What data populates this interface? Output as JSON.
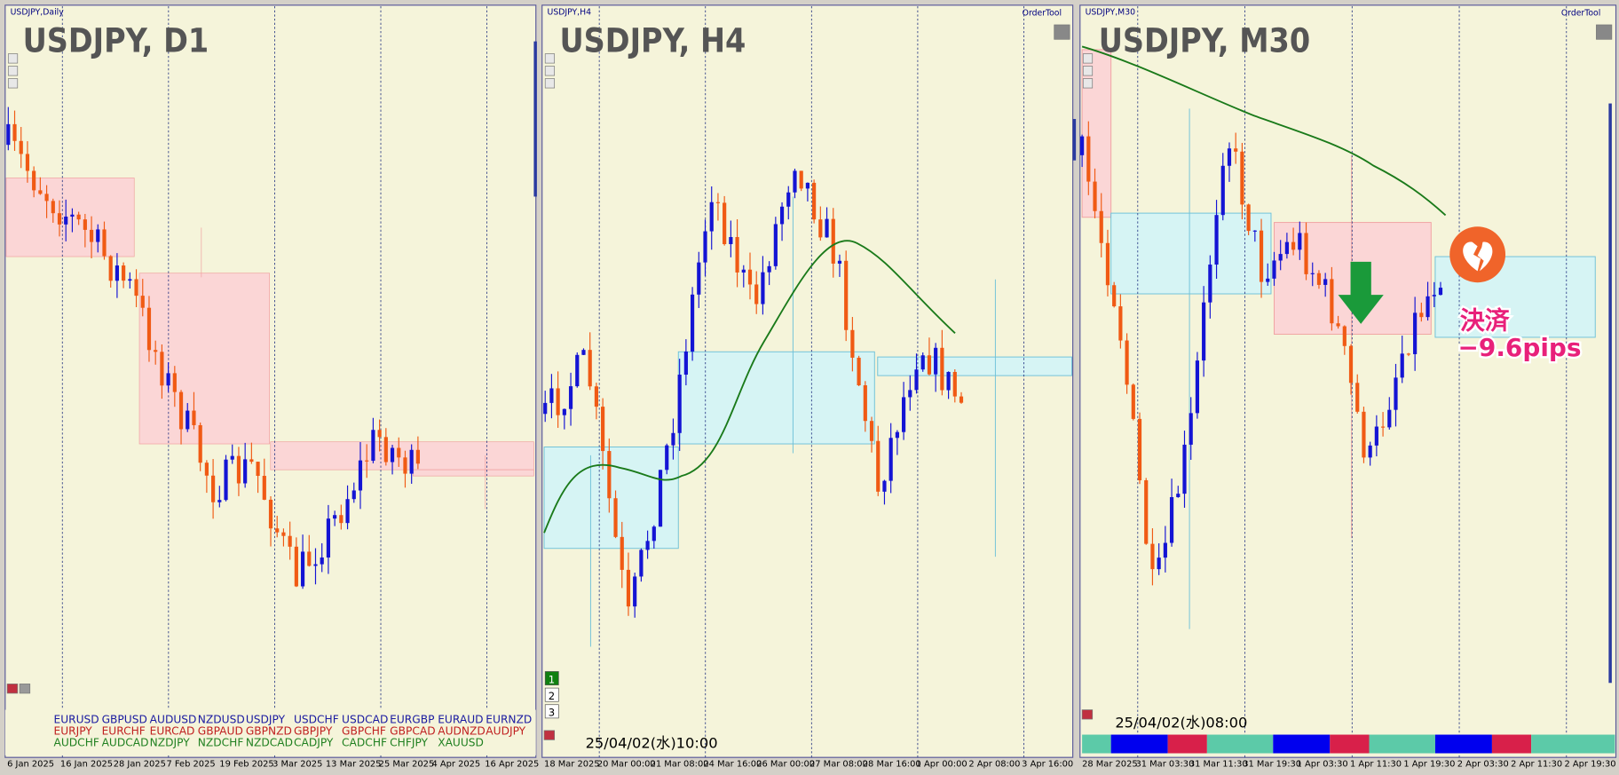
{
  "panels": [
    {
      "header": "USDJPY,Daily",
      "title": "USDJPY, D1",
      "time_labels": [
        "6 Jan 2025",
        "16 Jan 2025",
        "28 Jan 2025",
        "7 Feb 2025",
        "19 Feb 2025",
        "3 Mar 2025",
        "13 Mar 2025",
        "25 Mar 2025",
        "4 Apr 2025",
        "16 Apr 2025"
      ],
      "symbols": [
        [
          "EURUSD",
          "GBPUSD",
          "AUDUSD",
          "NZDUSD",
          "USDJPY",
          "USDCHF",
          "USDCAD",
          "EURGBP",
          "EURAUD",
          "EURNZD"
        ],
        [
          "EURJPY",
          "EURCHF",
          "EURCAD",
          "GBPAUD",
          "GBPNZD",
          "GBPJPY",
          "GBPCHF",
          "GBPCAD",
          "AUDNZD",
          "AUDJPY"
        ],
        [
          "AUDCHF",
          "AUDCAD",
          "NZDJPY",
          "NZDCHF",
          "NZDCAD",
          "CADJPY",
          "CADCHF",
          "CHFJPY",
          "XAUUSD"
        ]
      ]
    },
    {
      "header": "USDJPY,H4",
      "tool": "OrderTool",
      "title": "USDJPY, H4",
      "time_labels": [
        "18 Mar 2025",
        "20 Mar 00:00",
        "21 Mar 08:00",
        "24 Mar 16:00",
        "26 Mar 00:00",
        "27 Mar 08:00",
        "28 Mar 16:00",
        "1 Apr 00:00",
        "2 Apr 08:00",
        "3 Apr 16:00"
      ],
      "timestamp": "25/04/02(水)10:00",
      "buttons": [
        "1",
        "2",
        "3"
      ]
    },
    {
      "header": "USDJPY,M30",
      "tool": "OrderTool",
      "title": "USDJPY, M30",
      "time_labels": [
        "28 Mar 2025",
        "31 Mar 03:30",
        "31 Mar 11:30",
        "31 Mar 19:30",
        "1 Apr 03:30",
        "1 Apr 11:30",
        "1 Apr 19:30",
        "2 Apr 03:30",
        "2 Apr 11:30",
        "2 Apr 19:30"
      ],
      "timestamp": "25/04/02(水)08:00",
      "annotation": [
        "決済",
        "−9.6pips"
      ]
    }
  ]
}
